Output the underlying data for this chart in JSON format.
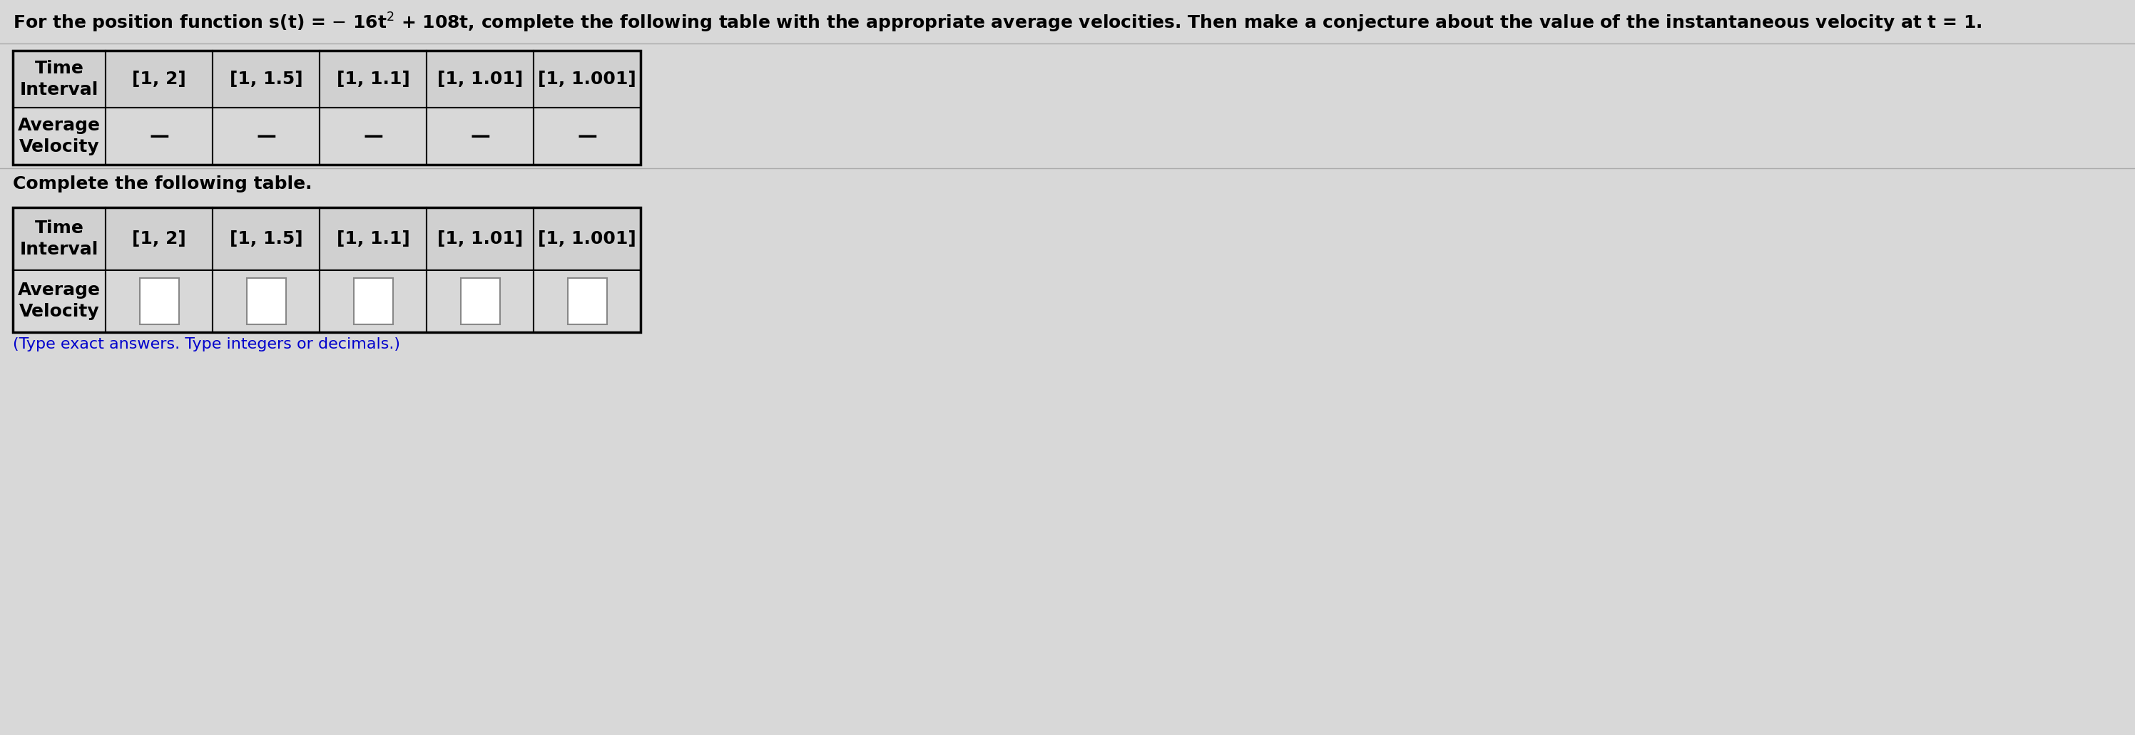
{
  "title_full": "For the position function s(t) = − 16t$^{2}$ + 108t, complete the following table with the appropriate average velocities. Then make a conjecture about the value of the instantaneous velocity at t = 1.",
  "complete_table_text": "Complete the following table.",
  "note_text": "(Type exact answers. Type integers or decimals.)",
  "intervals": [
    "[1, 2]",
    "[1, 1.5]",
    "[1, 1.1]",
    "[1, 1.01]",
    "[1, 1.001]"
  ],
  "dash": "—",
  "bg_color": "#d8d8d8",
  "header_bg": "#d0d0d0",
  "cell_bg": "#d8d8d8",
  "input_box_color": "#ffffff",
  "title_fontsize": 18,
  "table_fontsize": 18,
  "note_color": "#0000cc",
  "note_fontsize": 16
}
